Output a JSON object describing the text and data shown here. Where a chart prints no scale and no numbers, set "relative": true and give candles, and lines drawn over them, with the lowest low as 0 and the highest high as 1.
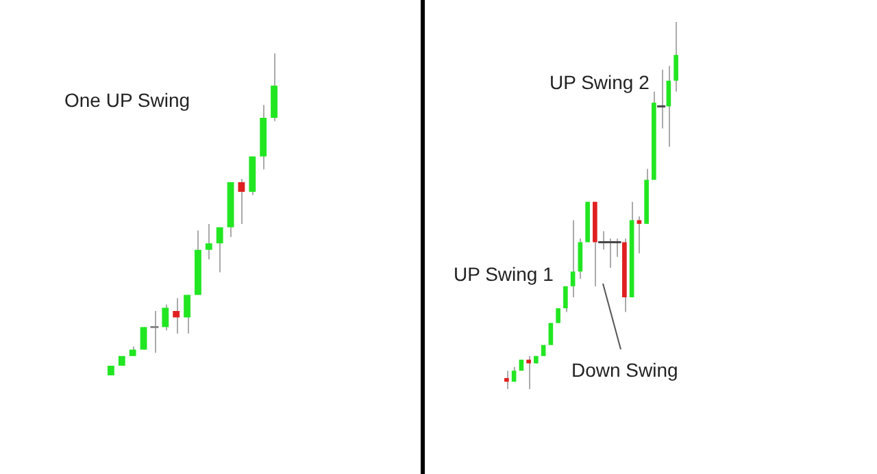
{
  "chart_data": [
    {
      "type": "candlestick",
      "relative": true,
      "annotations": [
        "One UP Swing"
      ],
      "categories": [
        null,
        null,
        null,
        null,
        null,
        null,
        null,
        null,
        null,
        null,
        null,
        null,
        null,
        null,
        null,
        null
      ],
      "ohlc": [
        [
          0.0,
          0.03,
          0.0,
          0.03
        ],
        [
          0.03,
          0.06,
          0.03,
          0.06
        ],
        [
          0.06,
          0.09,
          0.06,
          0.08
        ],
        [
          0.08,
          0.15,
          0.08,
          0.15
        ],
        [
          0.15,
          0.2,
          0.07,
          0.15
        ],
        [
          0.15,
          0.22,
          0.14,
          0.21
        ],
        [
          0.2,
          0.24,
          0.13,
          0.18
        ],
        [
          0.18,
          0.25,
          0.13,
          0.25
        ],
        [
          0.25,
          0.45,
          0.25,
          0.39
        ],
        [
          0.39,
          0.47,
          0.36,
          0.41
        ],
        [
          0.41,
          0.46,
          0.32,
          0.46
        ],
        [
          0.46,
          0.6,
          0.43,
          0.6
        ],
        [
          0.6,
          0.61,
          0.47,
          0.57
        ],
        [
          0.57,
          0.68,
          0.56,
          0.68
        ],
        [
          0.68,
          0.84,
          0.64,
          0.8
        ],
        [
          0.8,
          1.0,
          0.79,
          0.9
        ]
      ],
      "colors": [
        "#22e622",
        "#22e622",
        "#22e622",
        "#22e622",
        "#888888",
        "#22e622",
        "#e02020",
        "#22e622",
        "#22e622",
        "#22e622",
        "#22e622",
        "#22e622",
        "#e02020",
        "#22e622",
        "#22e622",
        "#22e622"
      ]
    },
    {
      "type": "candlestick",
      "relative": true,
      "annotations": [
        "UP Swing 1",
        "UP Swing 2",
        "Down Swing"
      ],
      "categories": [
        null,
        null,
        null,
        null,
        null,
        null,
        null,
        null,
        null,
        null,
        null,
        null,
        null,
        null,
        null,
        null,
        null,
        null,
        null,
        null,
        null,
        null,
        null,
        null
      ],
      "ohlc": [
        [
          0.03,
          0.05,
          0.0,
          0.02
        ],
        [
          0.02,
          0.06,
          0.02,
          0.05
        ],
        [
          0.05,
          0.08,
          0.05,
          0.08
        ],
        [
          0.08,
          0.09,
          0.0,
          0.07
        ],
        [
          0.07,
          0.09,
          0.07,
          0.09
        ],
        [
          0.09,
          0.12,
          0.09,
          0.12
        ],
        [
          0.12,
          0.18,
          0.12,
          0.18
        ],
        [
          0.18,
          0.22,
          0.18,
          0.22
        ],
        [
          0.22,
          0.28,
          0.21,
          0.28
        ],
        [
          0.28,
          0.46,
          0.25,
          0.32
        ],
        [
          0.32,
          0.41,
          0.3,
          0.4
        ],
        [
          0.4,
          0.51,
          0.4,
          0.51
        ],
        [
          0.51,
          0.51,
          0.28,
          0.4
        ],
        [
          0.4,
          0.43,
          0.38,
          0.4
        ],
        [
          0.4,
          0.41,
          0.33,
          0.4
        ],
        [
          0.4,
          0.41,
          0.36,
          0.4
        ],
        [
          0.4,
          0.41,
          0.21,
          0.25
        ],
        [
          0.25,
          0.51,
          0.25,
          0.46
        ],
        [
          0.46,
          0.47,
          0.37,
          0.45
        ],
        [
          0.45,
          0.6,
          0.45,
          0.57
        ],
        [
          0.57,
          0.81,
          0.57,
          0.78
        ],
        [
          0.77,
          0.87,
          0.71,
          0.77
        ],
        [
          0.77,
          0.88,
          0.66,
          0.84
        ],
        [
          0.84,
          1.0,
          0.81,
          0.91
        ]
      ],
      "colors": [
        "#e02020",
        "#22e622",
        "#22e622",
        "#e02020",
        "#22e622",
        "#22e622",
        "#22e622",
        "#22e622",
        "#22e622",
        "#22e622",
        "#22e622",
        "#22e622",
        "#e02020",
        "#444444",
        "#444444",
        "#444444",
        "#e02020",
        "#22e622",
        "#e02020",
        "#22e622",
        "#22e622",
        "#444444",
        "#22e622",
        "#22e622"
      ]
    }
  ]
}
